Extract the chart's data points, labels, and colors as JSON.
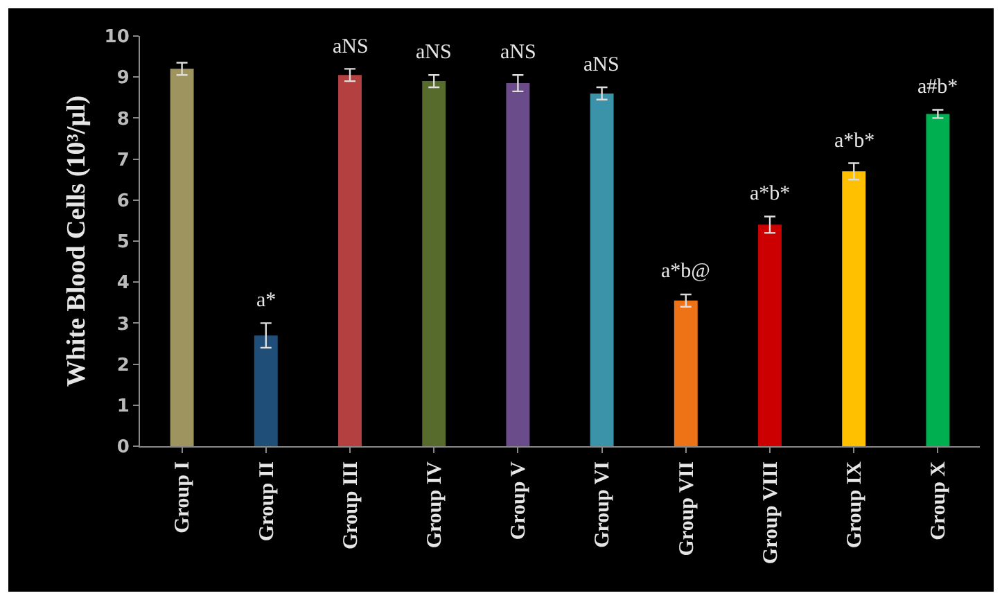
{
  "chart_data": {
    "type": "bar",
    "ylabel": "White Blood Cells (10³/μl)",
    "categories": [
      "Group I",
      "Group II",
      "Group III",
      "Group IV",
      "Group V",
      "Group VI",
      "Group VII",
      "Group VIII",
      "Group IX",
      "Group X"
    ],
    "values": [
      9.2,
      2.7,
      9.05,
      8.9,
      8.85,
      8.6,
      3.55,
      5.4,
      6.7,
      8.1
    ],
    "errors": [
      0.15,
      0.3,
      0.15,
      0.15,
      0.2,
      0.15,
      0.15,
      0.2,
      0.2,
      0.1
    ],
    "colors": [
      "#9e9460",
      "#1f4e79",
      "#b54040",
      "#566b2c",
      "#6b4c8a",
      "#3a93a8",
      "#ee7316",
      "#cc0000",
      "#ffc000",
      "#00b050"
    ],
    "value_labels": [
      null,
      "a*",
      "aNS",
      "aNS",
      "aNS",
      "aNS",
      "a*b@",
      "a*b*",
      "a*b*",
      "a#b*"
    ],
    "ylim": [
      0,
      10
    ],
    "yticks": [
      0,
      1,
      2,
      3,
      4,
      5,
      6,
      7,
      8,
      9,
      10
    ],
    "grid": false
  }
}
